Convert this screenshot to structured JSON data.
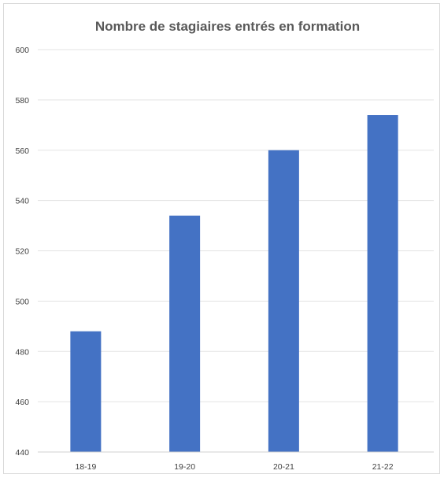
{
  "chart_data": {
    "type": "bar",
    "title": "Nombre de stagiaires entrés en formation",
    "xlabel": "",
    "ylabel": "",
    "categories": [
      "18-19",
      "19-20",
      "20-21",
      "21-22"
    ],
    "values": [
      488,
      534,
      560,
      574
    ],
    "ylim": [
      440,
      600
    ],
    "yticks": [
      440,
      460,
      480,
      500,
      520,
      540,
      560,
      580,
      600
    ],
    "grid": true,
    "legend": "none",
    "bar_color": "#4472C4"
  }
}
